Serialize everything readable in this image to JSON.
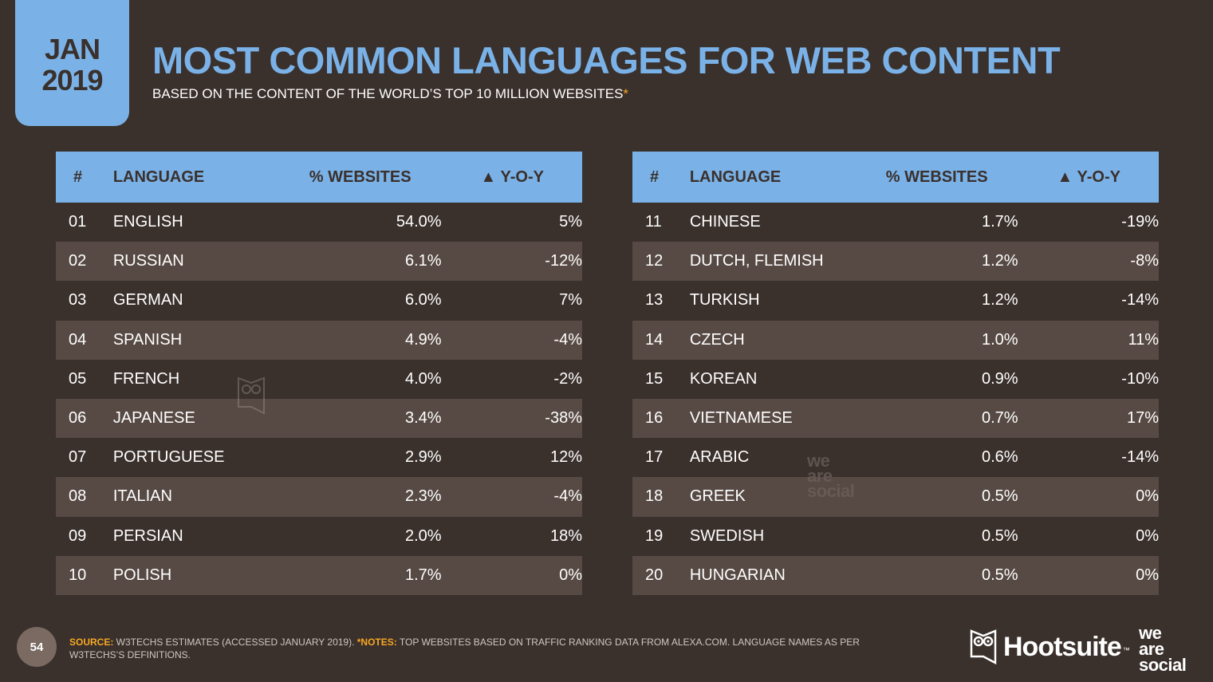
{
  "badge": {
    "month": "JAN",
    "year": "2019"
  },
  "header": {
    "title": "MOST COMMON LANGUAGES FOR WEB CONTENT",
    "subtitle": "BASED ON THE CONTENT OF THE WORLD’S TOP 10 MILLION WEBSITES",
    "subtitle_mark": "*"
  },
  "table": {
    "columns": [
      "#",
      "LANGUAGE",
      "% WEBSITES",
      "▲ Y-O-Y"
    ],
    "left": [
      {
        "num": "01",
        "lang": "ENGLISH",
        "pct": "54.0%",
        "yoy": "5%"
      },
      {
        "num": "02",
        "lang": "RUSSIAN",
        "pct": "6.1%",
        "yoy": "-12%"
      },
      {
        "num": "03",
        "lang": "GERMAN",
        "pct": "6.0%",
        "yoy": "7%"
      },
      {
        "num": "04",
        "lang": "SPANISH",
        "pct": "4.9%",
        "yoy": "-4%"
      },
      {
        "num": "05",
        "lang": "FRENCH",
        "pct": "4.0%",
        "yoy": "-2%"
      },
      {
        "num": "06",
        "lang": "JAPANESE",
        "pct": "3.4%",
        "yoy": "-38%"
      },
      {
        "num": "07",
        "lang": "PORTUGUESE",
        "pct": "2.9%",
        "yoy": "12%"
      },
      {
        "num": "08",
        "lang": "ITALIAN",
        "pct": "2.3%",
        "yoy": "-4%"
      },
      {
        "num": "09",
        "lang": "PERSIAN",
        "pct": "2.0%",
        "yoy": "18%"
      },
      {
        "num": "10",
        "lang": "POLISH",
        "pct": "1.7%",
        "yoy": "0%"
      }
    ],
    "right": [
      {
        "num": "11",
        "lang": "CHINESE",
        "pct": "1.7%",
        "yoy": "-19%"
      },
      {
        "num": "12",
        "lang": "DUTCH, FLEMISH",
        "pct": "1.2%",
        "yoy": "-8%"
      },
      {
        "num": "13",
        "lang": "TURKISH",
        "pct": "1.2%",
        "yoy": "-14%"
      },
      {
        "num": "14",
        "lang": "CZECH",
        "pct": "1.0%",
        "yoy": "11%"
      },
      {
        "num": "15",
        "lang": "KOREAN",
        "pct": "0.9%",
        "yoy": "-10%"
      },
      {
        "num": "16",
        "lang": "VIETNAMESE",
        "pct": "0.7%",
        "yoy": "17%"
      },
      {
        "num": "17",
        "lang": "ARABIC",
        "pct": "0.6%",
        "yoy": "-14%"
      },
      {
        "num": "18",
        "lang": "GREEK",
        "pct": "0.5%",
        "yoy": "0%"
      },
      {
        "num": "19",
        "lang": "SWEDISH",
        "pct": "0.5%",
        "yoy": "0%"
      },
      {
        "num": "20",
        "lang": "HUNGARIAN",
        "pct": "0.5%",
        "yoy": "0%"
      }
    ]
  },
  "footer": {
    "page_number": "54",
    "source_label": "SOURCE:",
    "source_text": " W3TECHS ESTIMATES (ACCESSED JANUARY 2019). ",
    "notes_label": "*NOTES:",
    "notes_text": " TOP WEBSITES BASED ON TRAFFIC RANKING DATA FROM ALEXA.COM. LANGUAGE NAMES AS PER W3TECHS’S DEFINITIONS."
  },
  "logos": {
    "hootsuite": "Hootsuite",
    "hootsuite_tm": "™",
    "we_are_social": [
      "we",
      "are",
      "social"
    ]
  },
  "colors": {
    "background": "#3a302c",
    "accent_blue": "#7ab2e8",
    "row_alt": "#574a44",
    "highlight_orange": "#f7a823"
  }
}
